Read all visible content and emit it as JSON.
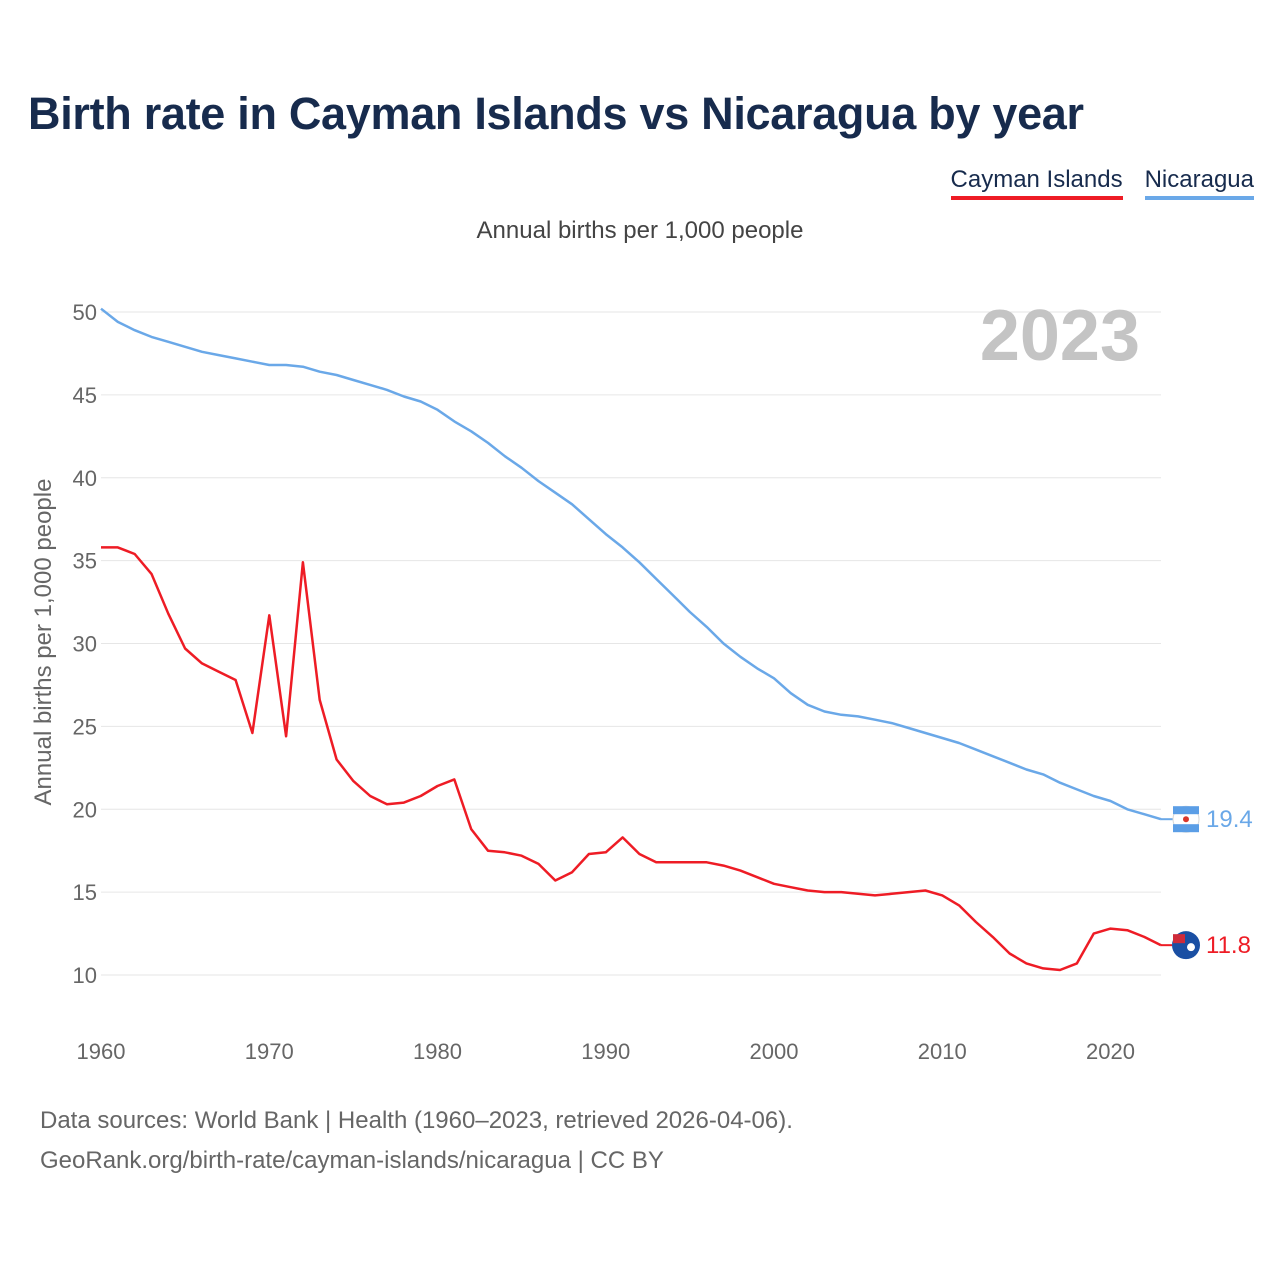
{
  "title": "Birth rate in Cayman Islands vs Nicaragua by year",
  "subtitle": "Annual births per 1,000 people",
  "legend": [
    {
      "name": "Cayman Islands",
      "color": "#ee1c25"
    },
    {
      "name": "Nicaragua",
      "color": "#6aa8e8"
    }
  ],
  "year_label": "2023",
  "footer": {
    "line1": "Data sources: World Bank | Health (1960–2023, retrieved 2026-04-06).",
    "line2": "GeoRank.org/birth-rate/cayman-islands/nicaragua | CC BY"
  },
  "end_labels": {
    "cayman": "11.8",
    "nicaragua": "19.4"
  },
  "chart_data": {
    "type": "line",
    "title": "Birth rate in Cayman Islands vs Nicaragua by year",
    "ylabel": "Annual births per 1,000 people",
    "xlabel": "",
    "xlim": [
      1960,
      2023
    ],
    "ylim": [
      8,
      51
    ],
    "yticks": [
      10,
      15,
      20,
      25,
      30,
      35,
      40,
      45,
      50
    ],
    "xticks": [
      1960,
      1970,
      1980,
      1990,
      2000,
      2010,
      2020
    ],
    "x": [
      1960,
      1961,
      1962,
      1963,
      1964,
      1965,
      1966,
      1967,
      1968,
      1969,
      1970,
      1971,
      1972,
      1973,
      1974,
      1975,
      1976,
      1977,
      1978,
      1979,
      1980,
      1981,
      1982,
      1983,
      1984,
      1985,
      1986,
      1987,
      1988,
      1989,
      1990,
      1991,
      1992,
      1993,
      1994,
      1995,
      1996,
      1997,
      1998,
      1999,
      2000,
      2001,
      2002,
      2003,
      2004,
      2005,
      2006,
      2007,
      2008,
      2009,
      2010,
      2011,
      2012,
      2013,
      2014,
      2015,
      2016,
      2017,
      2018,
      2019,
      2020,
      2021,
      2022,
      2023
    ],
    "series": [
      {
        "name": "Cayman Islands",
        "color": "#ee1c25",
        "values": [
          35.8,
          35.8,
          35.4,
          34.2,
          31.8,
          29.7,
          28.8,
          28.3,
          27.8,
          24.6,
          31.7,
          24.4,
          34.9,
          26.6,
          23.0,
          21.7,
          20.8,
          20.3,
          20.4,
          20.8,
          21.4,
          21.8,
          18.8,
          17.5,
          17.4,
          17.2,
          16.7,
          15.7,
          16.2,
          17.3,
          17.4,
          18.3,
          17.3,
          16.8,
          16.8,
          16.8,
          16.8,
          16.6,
          16.3,
          15.9,
          15.5,
          15.3,
          15.1,
          15.0,
          15.0,
          14.9,
          14.8,
          14.9,
          15.0,
          15.1,
          14.8,
          14.2,
          13.2,
          12.3,
          11.3,
          10.7,
          10.4,
          10.3,
          10.7,
          12.5,
          12.8,
          12.7,
          12.3,
          11.8
        ]
      },
      {
        "name": "Nicaragua",
        "color": "#6aa8e8",
        "values": [
          50.2,
          49.4,
          48.9,
          48.5,
          48.2,
          47.9,
          47.6,
          47.4,
          47.2,
          47.0,
          46.8,
          46.8,
          46.7,
          46.4,
          46.2,
          45.9,
          45.6,
          45.3,
          44.9,
          44.6,
          44.1,
          43.4,
          42.8,
          42.1,
          41.3,
          40.6,
          39.8,
          39.1,
          38.4,
          37.5,
          36.6,
          35.8,
          34.9,
          33.9,
          32.9,
          31.9,
          31.0,
          30.0,
          29.2,
          28.5,
          27.9,
          27.0,
          26.3,
          25.9,
          25.7,
          25.6,
          25.4,
          25.2,
          24.9,
          24.6,
          24.3,
          24.0,
          23.6,
          23.2,
          22.8,
          22.4,
          22.1,
          21.6,
          21.2,
          20.8,
          20.5,
          20.0,
          19.7,
          19.4
        ]
      }
    ]
  }
}
